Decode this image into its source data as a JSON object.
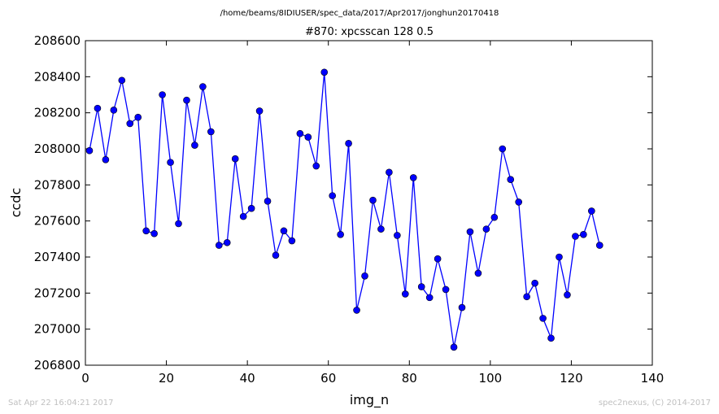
{
  "header": {
    "path": "/home/beams/8IDIUSER/spec_data/2017/Apr2017/jonghun20170418"
  },
  "footer": {
    "timestamp": "Sat Apr 22 16:04:21 2017",
    "credit": "spec2nexus, (C) 2014-2017"
  },
  "chart_data": {
    "type": "line",
    "title": "#870: xpcsscan 128 0.5",
    "xlabel": "img_n",
    "ylabel": "ccdc",
    "xlim": [
      0,
      140
    ],
    "ylim": [
      206800,
      208600
    ],
    "xticks": [
      0,
      20,
      40,
      60,
      80,
      100,
      120,
      140
    ],
    "yticks": [
      206800,
      207000,
      207200,
      207400,
      207600,
      207800,
      208000,
      208200,
      208400,
      208600
    ],
    "grid": false,
    "legend": "none",
    "series_color": "#0000ff",
    "marker_color": "#0000ff",
    "x": [
      1,
      3,
      5,
      7,
      9,
      11,
      13,
      15,
      17,
      19,
      21,
      23,
      25,
      27,
      29,
      31,
      33,
      35,
      37,
      39,
      41,
      43,
      45,
      47,
      49,
      51,
      53,
      55,
      57,
      59,
      61,
      63,
      65,
      67,
      69,
      71,
      73,
      75,
      77,
      79,
      81,
      83,
      85,
      87,
      89,
      91,
      93,
      95,
      97,
      99,
      101,
      103,
      105,
      107,
      109,
      111,
      113,
      115,
      117,
      119,
      121,
      123,
      125,
      127
    ],
    "y": [
      207990,
      208225,
      207940,
      208215,
      208380,
      208140,
      208175,
      207545,
      207530,
      208300,
      207925,
      207585,
      208270,
      208020,
      208345,
      208095,
      207465,
      207480,
      207945,
      207625,
      207670,
      208210,
      207710,
      207410,
      207545,
      207490,
      208085,
      208065,
      207905,
      208425,
      207740,
      207525,
      208030,
      207105,
      207295,
      207715,
      207555,
      207870,
      207520,
      207195,
      207840,
      207235,
      207175,
      207390,
      207220,
      206900,
      207120,
      207540,
      207310,
      207555,
      207620,
      208000,
      207830,
      207705,
      207180,
      207255,
      207060,
      206950,
      207400,
      207190,
      207515,
      207525,
      207655,
      207465
    ]
  }
}
